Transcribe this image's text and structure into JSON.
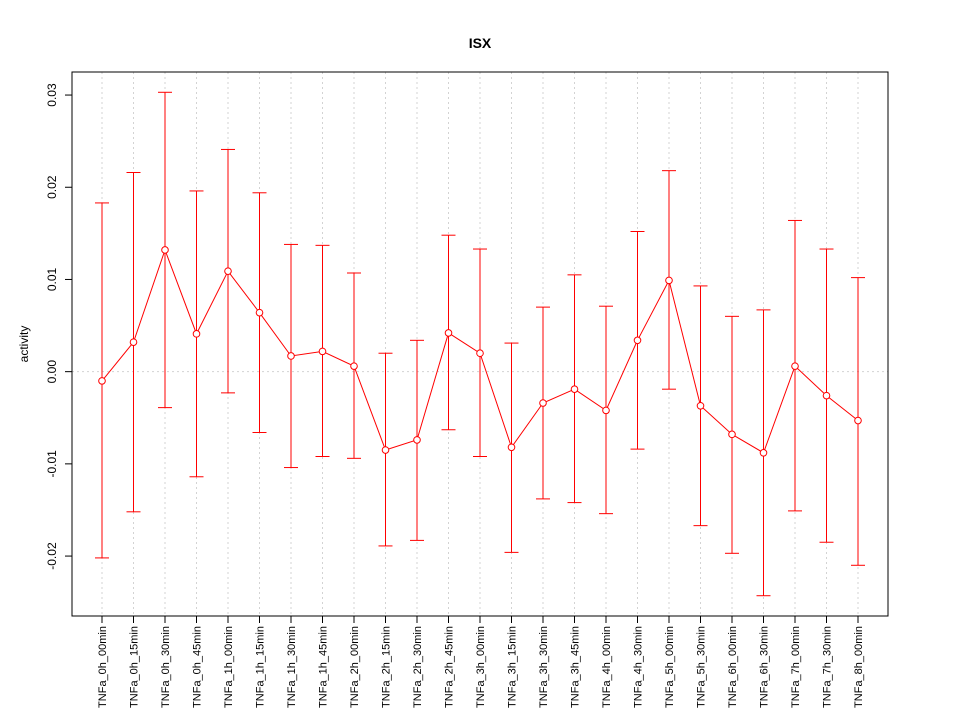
{
  "chart_data": {
    "type": "line",
    "title": "ISX",
    "xlabel": "",
    "ylabel": "activity",
    "ylim": [
      -0.0265,
      0.0325
    ],
    "yticks": [
      -0.02,
      -0.01,
      0.0,
      0.01,
      0.02,
      0.03
    ],
    "ytick_labels": [
      "-0.02",
      "-0.01",
      "0.00",
      "0.01",
      "0.02",
      "0.03"
    ],
    "grid": true,
    "colors": {
      "series": "#ff0000",
      "grid": "#d3d3d3",
      "axis": "#000000"
    },
    "categories": [
      "TNFa_0h_00min",
      "TNFa_0h_15min",
      "TNFa_0h_30min",
      "TNFa_0h_45min",
      "TNFa_1h_00min",
      "TNFa_1h_15min",
      "TNFa_1h_30min",
      "TNFa_1h_45min",
      "TNFa_2h_00min",
      "TNFa_2h_15min",
      "TNFa_2h_30min",
      "TNFa_2h_45min",
      "TNFa_3h_00min",
      "TNFa_3h_15min",
      "TNFa_3h_30min",
      "TNFa_3h_45min",
      "TNFa_4h_00min",
      "TNFa_4h_30min",
      "TNFa_5h_00min",
      "TNFa_5h_30min",
      "TNFa_6h_00min",
      "TNFa_6h_30min",
      "TNFa_7h_00min",
      "TNFa_7h_30min",
      "TNFa_8h_00min"
    ],
    "series": [
      {
        "values": [
          -0.001,
          0.0032,
          0.0132,
          0.0041,
          0.0109,
          0.0064,
          0.0017,
          0.0022,
          0.0006,
          -0.0085,
          -0.0074,
          0.0042,
          0.002,
          -0.0082,
          -0.0034,
          -0.0019,
          -0.0042,
          0.0034,
          0.0099,
          -0.0037,
          -0.0068,
          -0.0088,
          0.0006,
          -0.0026,
          -0.0053
        ],
        "upper": [
          0.0183,
          0.0216,
          0.0303,
          0.0196,
          0.0241,
          0.0194,
          0.0138,
          0.0137,
          0.0107,
          0.002,
          0.0034,
          0.0148,
          0.0133,
          0.0031,
          0.007,
          0.0105,
          0.0071,
          0.0152,
          0.0218,
          0.0093,
          0.006,
          0.0067,
          0.0164,
          0.0133,
          0.0102
        ],
        "lower": [
          -0.0202,
          -0.0152,
          -0.0039,
          -0.0114,
          -0.0023,
          -0.0066,
          -0.0104,
          -0.0092,
          -0.0094,
          -0.0189,
          -0.0183,
          -0.0063,
          -0.0092,
          -0.0196,
          -0.0138,
          -0.0142,
          -0.0154,
          -0.0084,
          -0.0019,
          -0.0167,
          -0.0197,
          -0.0243,
          -0.0151,
          -0.0185,
          -0.021
        ]
      }
    ]
  }
}
